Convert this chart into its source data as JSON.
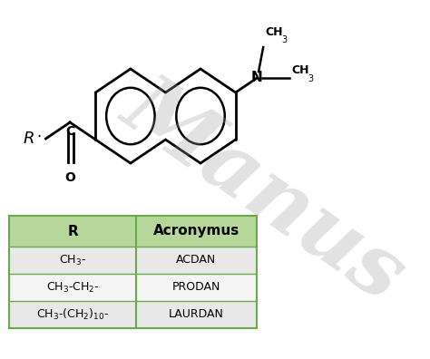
{
  "bg_color": "#ffffff",
  "watermark_text": "Manus",
  "watermark_color": "#a0a0a0",
  "watermark_alpha": 0.3,
  "table_header_bg": "#b5d89a",
  "table_row1_bg": "#e8e8e8",
  "table_row2_bg": "#f5f5f5",
  "table_row3_bg": "#e8e8e8",
  "table_border_color": "#6aaa4a",
  "col1_header": "R",
  "col2_header": "Acronymus"
}
